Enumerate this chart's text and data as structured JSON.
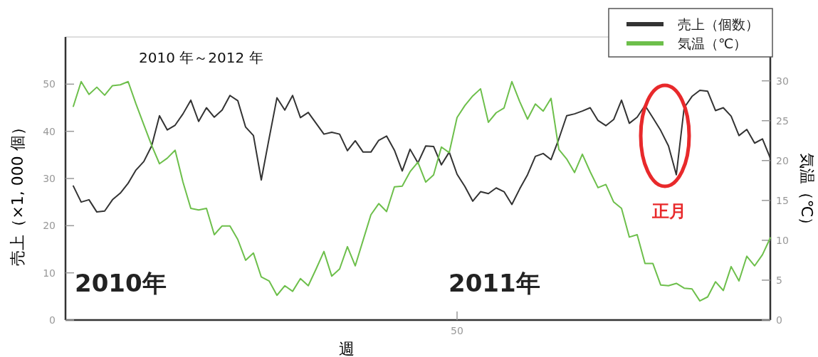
{
  "chart_data": {
    "type": "line",
    "title": "2010 年～2012 年",
    "xlabel": "週",
    "ylabel": "売上（×1, 000 個）",
    "y2label": "気温（℃）",
    "categories": [
      null,
      null,
      null,
      null,
      null,
      null,
      null,
      null,
      null,
      null,
      null,
      null,
      null,
      null,
      null,
      null,
      null,
      null,
      null,
      null,
      null,
      null,
      null,
      null,
      null,
      null,
      null,
      null,
      null,
      null,
      null,
      null,
      null,
      null,
      null,
      null,
      null,
      null,
      null,
      null,
      null,
      null,
      null,
      null,
      null,
      null,
      null,
      null,
      null,
      "50",
      null,
      null,
      null,
      null,
      null,
      null,
      null,
      null,
      null,
      null,
      null,
      null,
      null,
      null,
      null,
      null,
      null,
      null,
      null,
      null,
      null,
      null,
      null,
      null,
      null,
      null,
      null,
      null,
      null,
      null,
      null,
      null,
      null,
      null,
      null,
      null,
      null,
      null,
      null,
      null
    ],
    "series": [
      {
        "name": "売上（個数）",
        "color": "#333333",
        "values": [
          28.4,
          25.0,
          25.5,
          22.9,
          23.1,
          25.5,
          26.9,
          29.0,
          31.8,
          33.6,
          36.9,
          43.3,
          40.3,
          41.3,
          43.7,
          46.6,
          42.1,
          45.0,
          43.0,
          44.5,
          47.6,
          46.5,
          40.9,
          39.1,
          29.7,
          38.5,
          47.1,
          44.5,
          47.6,
          42.9,
          44.0,
          41.7,
          39.4,
          39.8,
          39.4,
          35.9,
          38.0,
          35.6,
          35.6,
          38.1,
          39.0,
          36.0,
          31.6,
          36.2,
          33.3,
          36.9,
          36.8,
          32.9,
          35.6,
          30.9,
          28.3,
          25.2,
          27.2,
          26.8,
          28.0,
          27.2,
          24.5,
          27.8,
          30.8,
          34.7,
          35.3,
          34.0,
          38.4,
          43.3,
          43.7,
          44.3,
          45.0,
          42.3,
          41.2,
          42.5,
          46.6,
          41.7,
          43.0,
          45.5,
          42.9,
          40.2,
          36.9,
          30.8,
          45.0,
          47.4,
          48.7,
          48.5,
          44.4,
          45.0,
          43.2,
          39.1,
          40.4,
          37.5,
          38.4,
          34.3
        ]
      },
      {
        "name": "気温（℃）",
        "color": "#6dbf4b",
        "axis": "y2",
        "values": [
          26.8,
          29.9,
          28.3,
          29.2,
          28.2,
          29.4,
          29.5,
          29.9,
          27.1,
          24.5,
          21.9,
          19.6,
          20.3,
          21.3,
          17.3,
          14.0,
          13.8,
          14.0,
          10.7,
          11.8,
          11.8,
          10.1,
          7.5,
          8.4,
          5.4,
          4.9,
          3.1,
          4.3,
          3.6,
          5.2,
          4.3,
          6.4,
          8.6,
          5.5,
          6.4,
          9.2,
          6.8,
          10.0,
          13.2,
          14.6,
          13.6,
          16.7,
          16.8,
          18.6,
          19.8,
          17.3,
          18.2,
          21.7,
          21.0,
          25.4,
          26.9,
          28.1,
          29.0,
          24.8,
          26.0,
          26.6,
          29.9,
          27.4,
          25.2,
          27.1,
          26.2,
          27.8,
          21.4,
          20.2,
          18.5,
          20.8,
          18.6,
          16.6,
          17.0,
          14.8,
          14.0,
          10.4,
          10.7,
          7.1,
          7.1,
          4.4,
          4.3,
          4.6,
          4.0,
          3.9,
          2.4,
          2.9,
          4.8,
          3.7,
          6.7,
          4.9,
          8.0,
          6.8,
          8.2,
          10.3
        ]
      }
    ],
    "ylim": [
      0,
      60
    ],
    "yticks": [
      0,
      10,
      20,
      30,
      40,
      50
    ],
    "y2lim": [
      0,
      35.5
    ],
    "y2ticks": [
      0,
      5,
      10,
      15,
      20,
      25,
      30
    ],
    "legend": "top right",
    "marker": "none",
    "line_style": "solid",
    "annotations": [
      "2010年",
      "2011年",
      "正月"
    ]
  }
}
